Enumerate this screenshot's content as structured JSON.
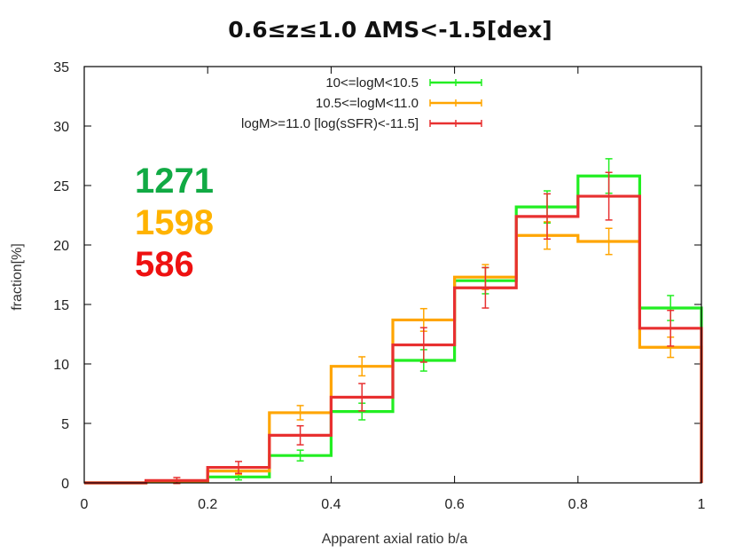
{
  "chart_data": {
    "type": "step-histogram",
    "title": "0.6≤z≤1.0  ΔMS<-1.5[dex]",
    "xlabel": "Apparent axial ratio b/a",
    "ylabel": "fraction[%]",
    "xlim": [
      0,
      1
    ],
    "ylim": [
      0,
      35
    ],
    "xticks": [
      0,
      0.2,
      0.4,
      0.6,
      0.8,
      1
    ],
    "xtick_labels": [
      "0",
      "0.2",
      "0.4",
      "0.6",
      "0.8",
      "1"
    ],
    "yticks": [
      0,
      5,
      10,
      15,
      20,
      25,
      30,
      35
    ],
    "ytick_labels": [
      "0",
      "5",
      "10",
      "15",
      "20",
      "25",
      "30",
      "35"
    ],
    "bin_edges": [
      0,
      0.1,
      0.2,
      0.3,
      0.4,
      0.5,
      0.6,
      0.7,
      0.8,
      0.9,
      1.0
    ],
    "legend_position": "top-center",
    "series": [
      {
        "name": "10<=logM<10.5",
        "color": "#22ee22",
        "count": "1271",
        "count_color": "#11aa44",
        "values": [
          0.0,
          0.1,
          0.5,
          2.3,
          6.0,
          10.3,
          17.0,
          23.2,
          25.8,
          14.7
        ],
        "errors": [
          0.05,
          0.15,
          0.25,
          0.45,
          0.7,
          0.9,
          1.1,
          1.35,
          1.45,
          1.05
        ]
      },
      {
        "name": "10.5<=logM<11.0",
        "color": "#ffa500",
        "count": "1598",
        "count_color": "#ffb300",
        "values": [
          0.0,
          0.1,
          1.0,
          5.9,
          9.8,
          13.7,
          17.3,
          20.8,
          20.3,
          11.4
        ],
        "errors": [
          0.05,
          0.15,
          0.3,
          0.6,
          0.8,
          0.95,
          1.05,
          1.15,
          1.1,
          0.85
        ]
      },
      {
        "name": "logM>=11.0 [log(sSFR)<-11.5]",
        "color": "#e83030",
        "count": "586",
        "count_color": "#ee1111",
        "values": [
          0.0,
          0.2,
          1.3,
          4.0,
          7.2,
          11.6,
          16.4,
          22.4,
          24.1,
          13.0
        ],
        "errors": [
          0.05,
          0.25,
          0.5,
          0.8,
          1.15,
          1.45,
          1.7,
          1.9,
          2.0,
          1.5
        ]
      }
    ]
  }
}
